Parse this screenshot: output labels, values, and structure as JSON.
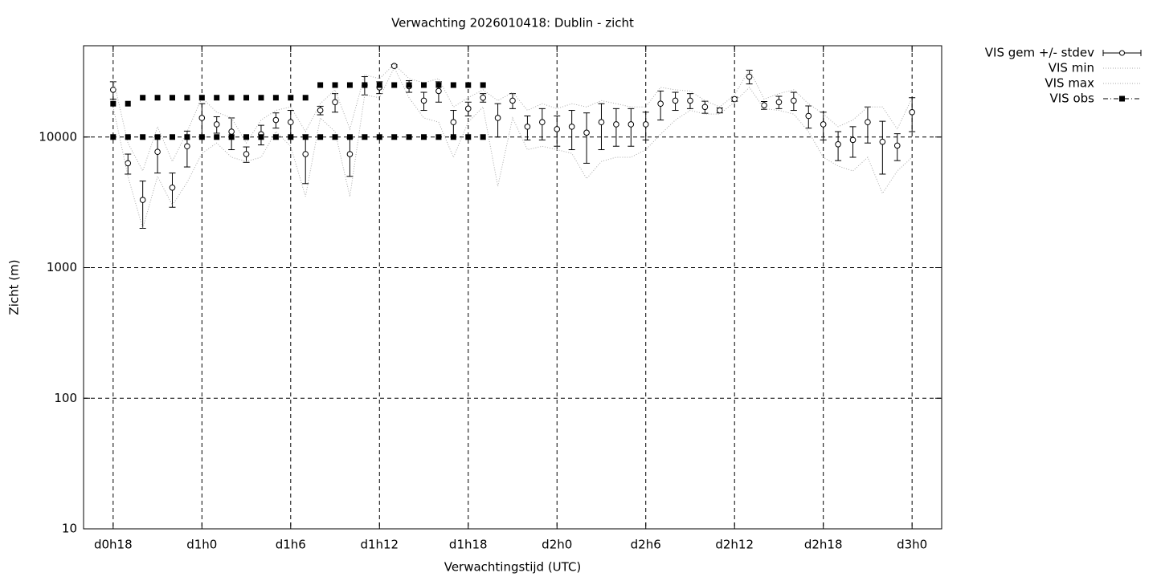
{
  "chart_data": {
    "type": "errorbar",
    "title": "Verwachting 2026010418: Dublin - zicht",
    "x_label": "Verwachtingstijd (UTC)",
    "y_label": "Zicht (m)",
    "log_y": true,
    "grid": true,
    "legend": "outside-right-top",
    "xlim": [
      16,
      74
    ],
    "ylim": [
      10,
      50000
    ],
    "xticks": [
      {
        "value": 18,
        "label": "d0h18"
      },
      {
        "value": 24,
        "label": "d1h0"
      },
      {
        "value": 30,
        "label": "d1h6"
      },
      {
        "value": 36,
        "label": "d1h12"
      },
      {
        "value": 42,
        "label": "d1h18"
      },
      {
        "value": 48,
        "label": "d2h0"
      },
      {
        "value": 54,
        "label": "d2h6"
      },
      {
        "value": 60,
        "label": "d2h12"
      },
      {
        "value": 66,
        "label": "d2h18"
      },
      {
        "value": 72,
        "label": "d3h0"
      }
    ],
    "yticks": [
      10,
      100,
      1000,
      10000
    ],
    "x": [
      18,
      19,
      20,
      21,
      22,
      23,
      24,
      25,
      26,
      27,
      28,
      29,
      30,
      31,
      32,
      33,
      34,
      35,
      36,
      37,
      38,
      39,
      40,
      41,
      42,
      43,
      44,
      45,
      46,
      47,
      48,
      49,
      50,
      51,
      52,
      53,
      54,
      55,
      56,
      57,
      58,
      59,
      60,
      61,
      62,
      63,
      64,
      65,
      66,
      67,
      68,
      69,
      70,
      71,
      72
    ],
    "series": [
      {
        "name": "VIS gem +/- stdev",
        "style": "errorbar",
        "color": "#000000",
        "values": [
          23000,
          6300,
          3300,
          7700,
          4100,
          8500,
          14000,
          12500,
          11000,
          7400,
          10500,
          13500,
          13000,
          7400,
          16000,
          18500,
          7400,
          25000,
          24000,
          35000,
          24500,
          19000,
          22500,
          13000,
          16500,
          20000,
          14000,
          19000,
          12000,
          13000,
          11500,
          12000,
          10800,
          13000,
          12500,
          12500,
          12500,
          18000,
          19000,
          19000,
          17000,
          16000,
          19500,
          29000,
          17500,
          18500,
          19000,
          14500,
          12500,
          8800,
          9500,
          13000,
          9200,
          8600,
          15500
        ],
        "errors": [
          3500,
          1100,
          1300,
          2400,
          1200,
          2600,
          4000,
          1800,
          3000,
          1000,
          1800,
          1800,
          3000,
          3000,
          1200,
          3000,
          2400,
          4000,
          2500,
          700,
          2500,
          3000,
          4000,
          3000,
          2000,
          1500,
          4000,
          2500,
          2500,
          3500,
          3000,
          4000,
          4500,
          5000,
          4000,
          4000,
          3000,
          4500,
          3000,
          2500,
          1800,
          700,
          700,
          3500,
          1200,
          2000,
          3000,
          2800,
          3000,
          2200,
          2500,
          4000,
          4000,
          2000,
          4500
        ]
      },
      {
        "name": "VIS min",
        "style": "dotted",
        "color": "#aaaaaa",
        "values": [
          17000,
          5000,
          2000,
          5000,
          3000,
          4500,
          7500,
          9000,
          7000,
          6500,
          7000,
          11000,
          8500,
          3500,
          14000,
          11000,
          3500,
          21000,
          20000,
          34000,
          20000,
          14000,
          13000,
          7000,
          13000,
          17000,
          4200,
          14000,
          8000,
          8500,
          8000,
          7500,
          4800,
          6500,
          7000,
          7000,
          8000,
          10500,
          13500,
          16000,
          15000,
          15000,
          18500,
          24000,
          16500,
          16000,
          15000,
          11000,
          7000,
          6000,
          5500,
          7000,
          3700,
          5500,
          7000
        ]
      },
      {
        "name": "VIS max",
        "style": "dotted",
        "color": "#aaaaaa",
        "values": [
          28000,
          9000,
          5500,
          12000,
          6500,
          11000,
          20000,
          15500,
          14000,
          9000,
          13500,
          16000,
          17000,
          11000,
          18000,
          23000,
          11500,
          30000,
          28000,
          36000,
          28000,
          26000,
          28000,
          17000,
          20000,
          23000,
          19000,
          22000,
          16000,
          18000,
          16500,
          18000,
          17000,
          19000,
          18000,
          17000,
          17000,
          24000,
          23000,
          22500,
          19000,
          17000,
          21000,
          33000,
          19500,
          21500,
          23000,
          18000,
          15000,
          12000,
          13500,
          17000,
          17000,
          11500,
          20000
        ]
      },
      {
        "name": "VIS obs",
        "style": "points",
        "color": "#000000",
        "x": [
          18,
          18,
          19,
          19,
          20,
          20,
          21,
          21,
          22,
          22,
          23,
          23,
          24,
          24,
          25,
          25,
          26,
          26,
          27,
          27,
          28,
          28,
          29,
          29,
          30,
          30,
          31,
          31,
          32,
          32,
          33,
          33,
          34,
          34,
          35,
          35,
          36,
          36,
          37,
          37,
          38,
          38,
          39,
          39,
          40,
          40,
          41,
          41,
          42,
          42,
          43,
          43
        ],
        "values": [
          18000,
          10000,
          18000,
          10000,
          20000,
          10000,
          20000,
          10000,
          20000,
          10000,
          20000,
          10000,
          20000,
          10000,
          20000,
          10000,
          20000,
          10000,
          20000,
          10000,
          20000,
          10000,
          20000,
          10000,
          20000,
          10000,
          20000,
          10000,
          25000,
          10000,
          25000,
          10000,
          25000,
          10000,
          25000,
          10000,
          25000,
          10000,
          25000,
          10000,
          25000,
          10000,
          25000,
          10000,
          25000,
          10000,
          25000,
          10000,
          25000,
          10000,
          25000,
          10000
        ]
      }
    ]
  }
}
